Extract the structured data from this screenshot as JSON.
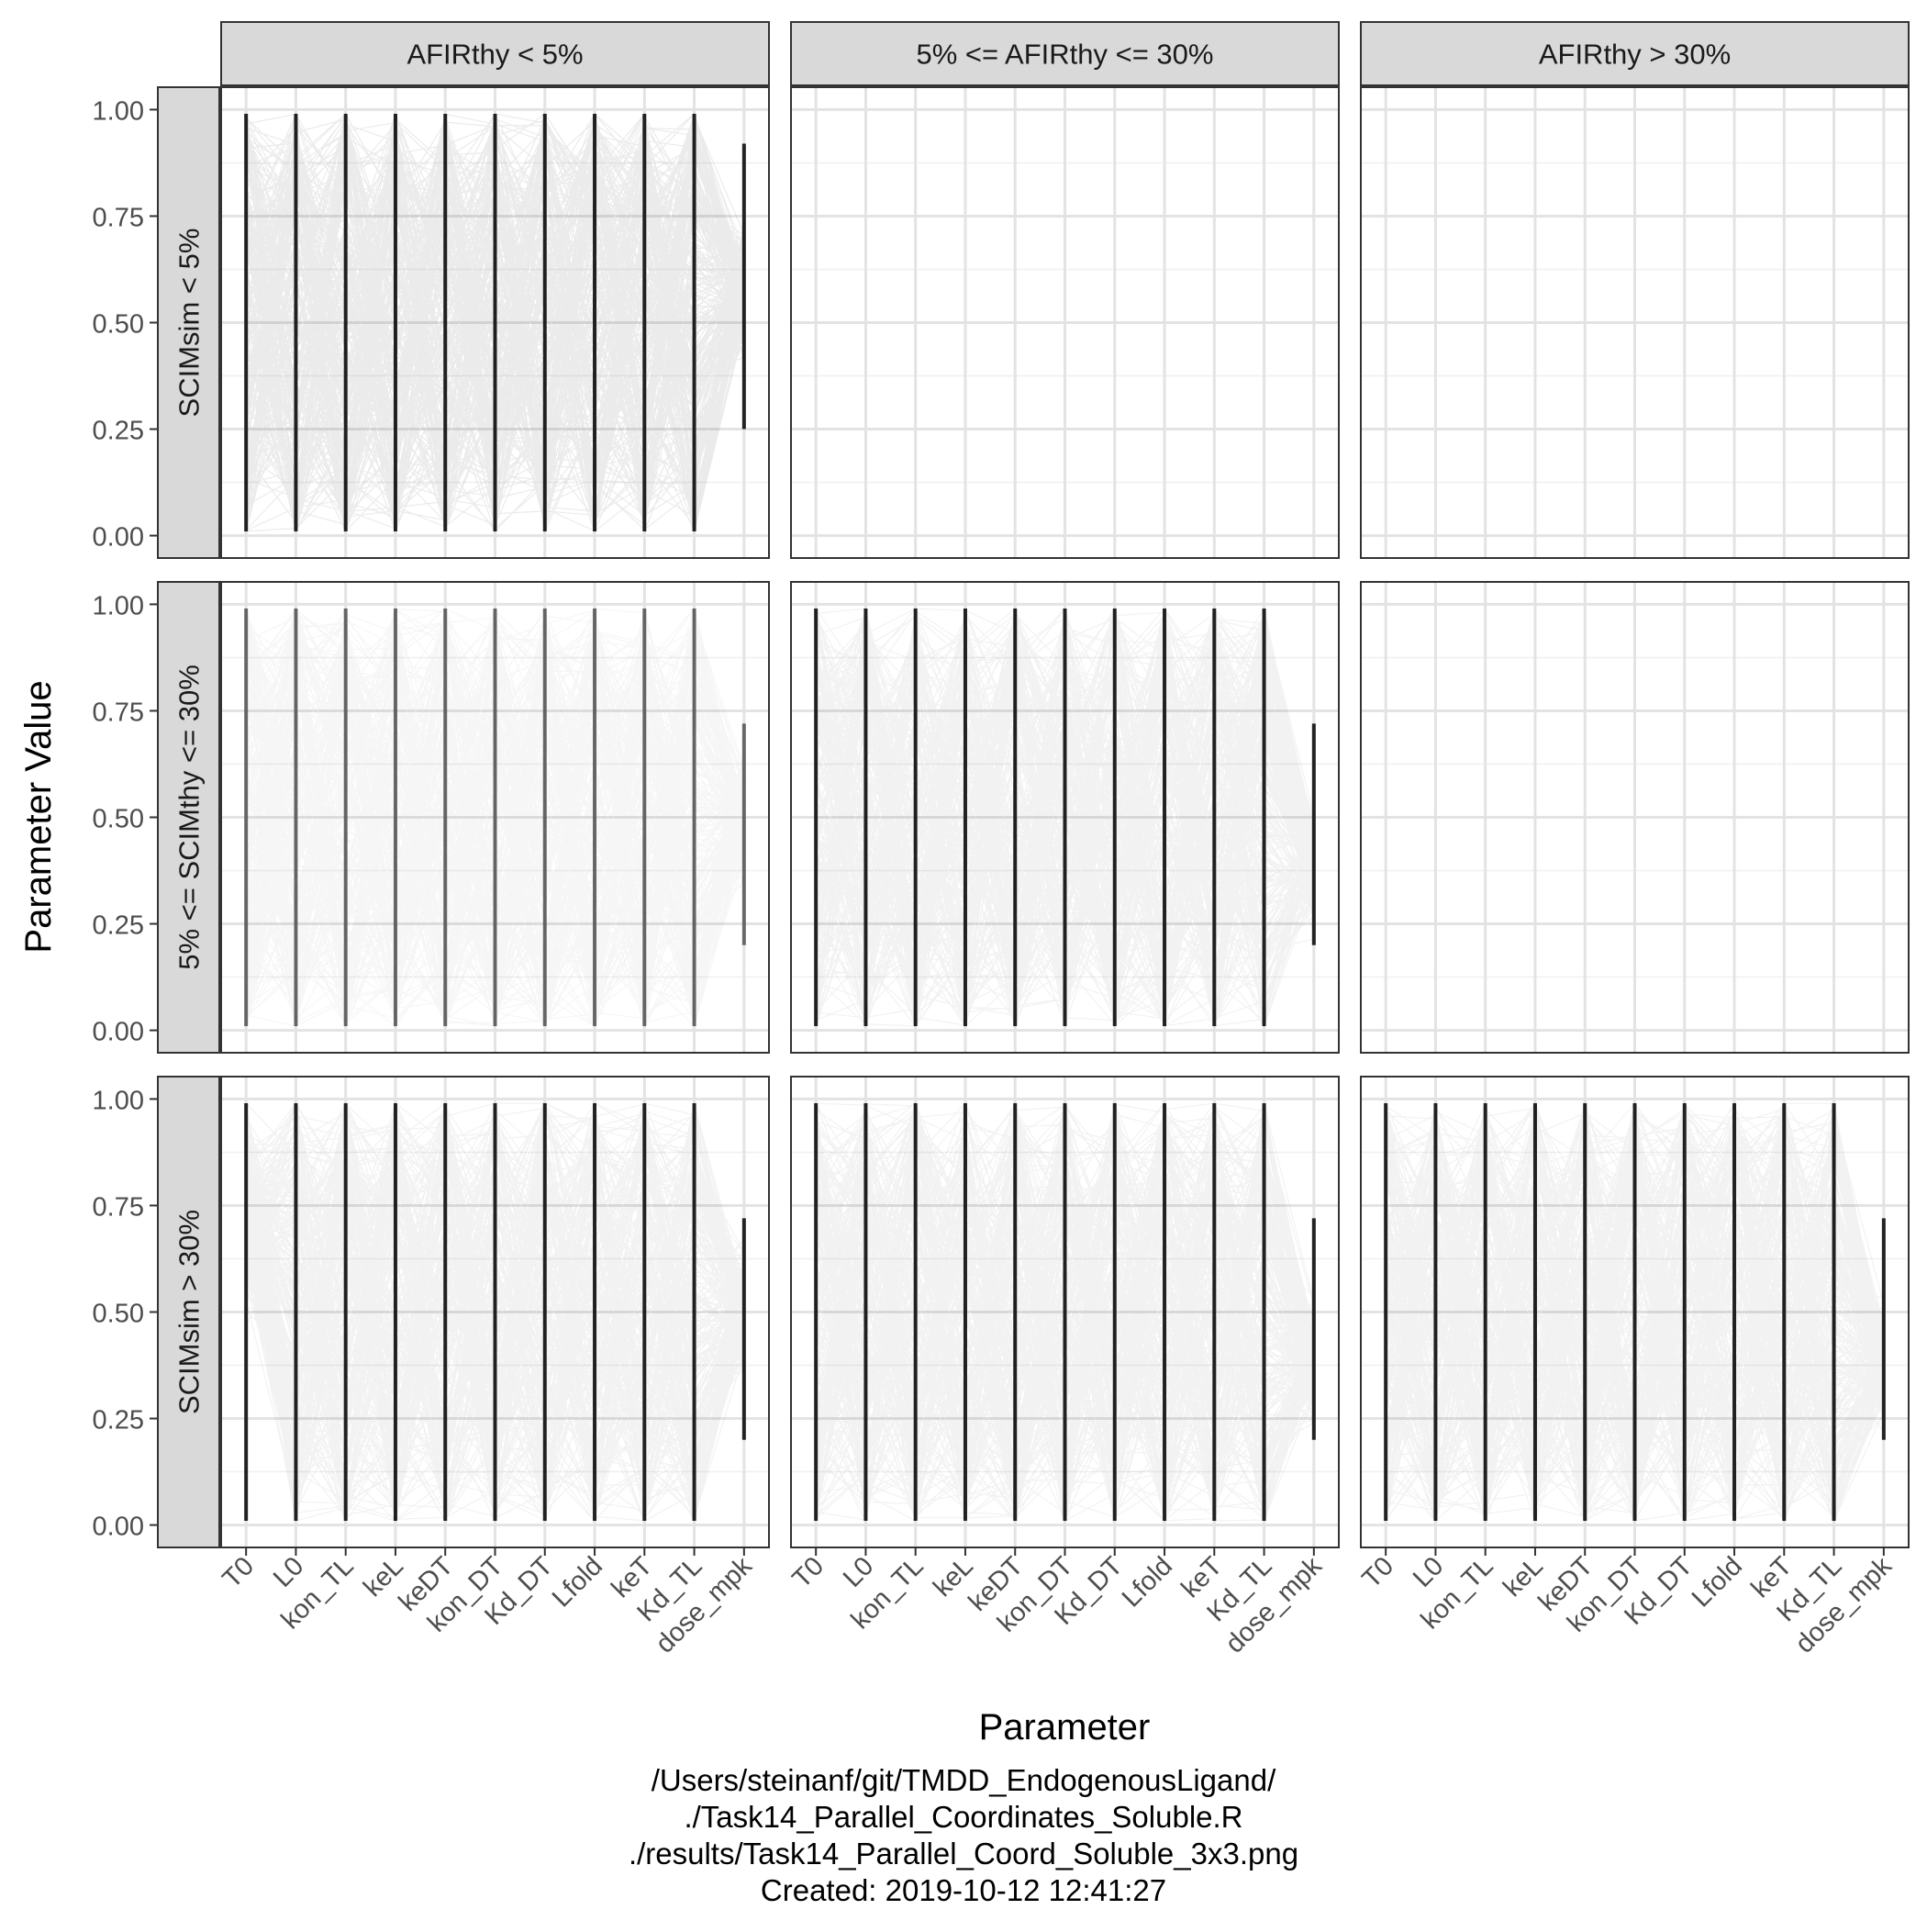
{
  "chart_data": {
    "type": "line",
    "facet_rows": [
      "SCIMsim < 5%",
      "5% <= SCIMthy <= 30%",
      "SCIMsim > 30%"
    ],
    "facet_cols": [
      "AFIRthy < 5%",
      "5% <= AFIRthy <= 30%",
      "AFIRthy > 30%"
    ],
    "categories": [
      "T0",
      "L0",
      "kon_TL",
      "keL",
      "keDT",
      "kon_DT",
      "Kd_DT",
      "Lfold",
      "keT",
      "Kd_TL",
      "dose_mpk"
    ],
    "ylim": [
      0,
      1
    ],
    "yticks": [
      "0.00",
      "0.25",
      "0.50",
      "0.75",
      "1.00"
    ],
    "xlabel": "Parameter",
    "ylabel": "Parameter Value",
    "panels_with_data": [
      [
        1,
        0,
        0
      ],
      [
        1,
        1,
        0
      ],
      [
        1,
        1,
        1
      ]
    ],
    "line_color": "#000000",
    "grid": true
  },
  "footer": {
    "line1": "/Users/steinanf/git/TMDD_EndogenousLigand/",
    "line2": "./Task14_Parallel_Coordinates_Soluble.R",
    "line3": "./results/Task14_Parallel_Coord_Soluble_3x3.png",
    "line4": "Created: 2019-10-12 12:41:27"
  }
}
